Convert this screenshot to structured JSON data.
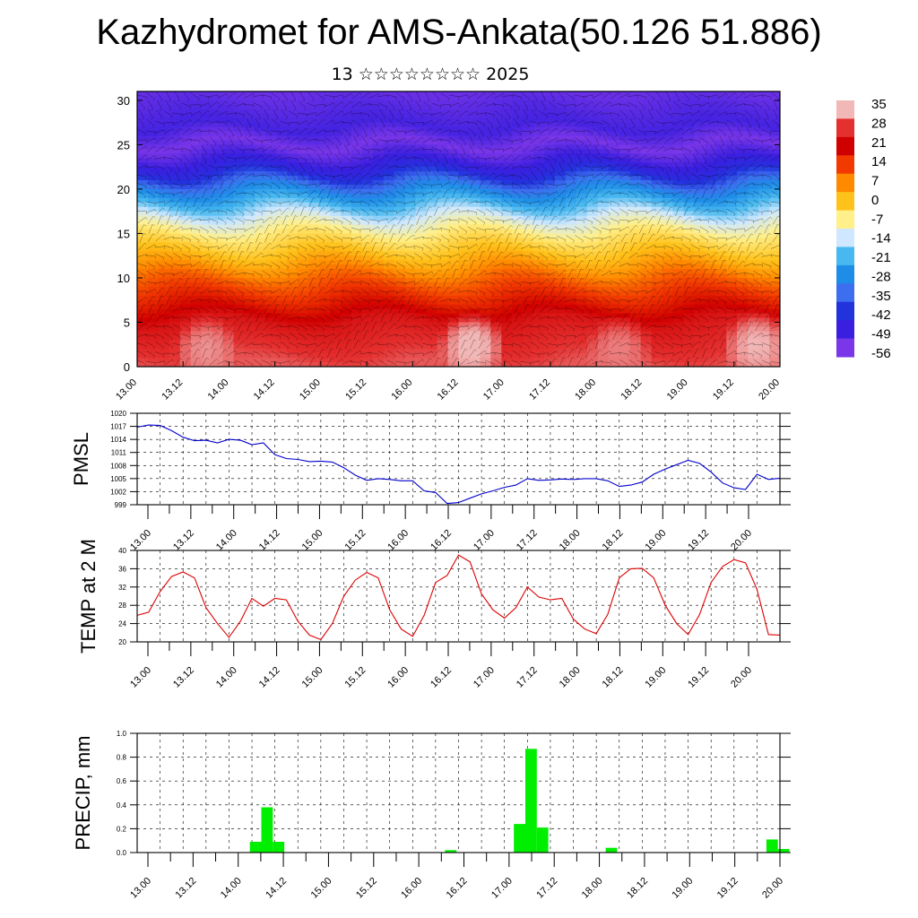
{
  "title": "Kazhydromet for AMS-Ankata(50.126 51.886)",
  "subtitle": "13 ☆☆☆☆☆☆☆☆ 2025",
  "time_labels": [
    "13.00",
    "13.12",
    "14.00",
    "14.12",
    "15.00",
    "15.12",
    "16.00",
    "16.12",
    "17.00",
    "17.12",
    "18.00",
    "18.12",
    "19.00",
    "19.12",
    "20.00"
  ],
  "chart_data": [
    {
      "type": "heatmap",
      "title": "",
      "ylabel": "",
      "ylim": [
        0,
        31
      ],
      "yticks": [
        "0",
        "5",
        "10",
        "15",
        "20",
        "25",
        "30"
      ],
      "colorbar": {
        "labels": [
          "35",
          "28",
          "21",
          "14",
          "7",
          "0",
          "-7",
          "-14",
          "-21",
          "-28",
          "-35",
          "-42",
          "-49",
          "-56"
        ],
        "colors": [
          "#f2b8b8",
          "#e53030",
          "#d10000",
          "#f23a00",
          "#ff8a00",
          "#ffc21a",
          "#fff08a",
          "#cfe8ff",
          "#48b9f0",
          "#1e8de8",
          "#3d6ef0",
          "#2233dd",
          "#3a1fe0",
          "#7a36e8"
        ]
      },
      "profile": [
        {
          "height": 0,
          "value": 30
        },
        {
          "height": 5,
          "value": 24
        },
        {
          "height": 10,
          "value": 10
        },
        {
          "height": 12.5,
          "value": 1
        },
        {
          "height": 15,
          "value": -6
        },
        {
          "height": 17,
          "value": -14
        },
        {
          "height": 20,
          "value": -30
        },
        {
          "height": 22,
          "value": -45
        },
        {
          "height": 25,
          "value": -56
        },
        {
          "height": 27,
          "value": -50
        },
        {
          "height": 31,
          "value": -54
        }
      ],
      "warm_cells": [
        {
          "time": 1.5,
          "height": 2,
          "value": 33
        },
        {
          "time": 7.3,
          "height": 2.5,
          "value": 36
        },
        {
          "time": 10.5,
          "height": 2,
          "value": 32
        },
        {
          "time": 13.5,
          "height": 2.5,
          "value": 35
        }
      ]
    },
    {
      "type": "line",
      "ylabel": "PMSL",
      "ylim": [
        999,
        1020
      ],
      "yticks": [
        "999",
        "1002",
        "1005",
        "1008",
        "1011",
        "1014",
        "1017",
        "1020"
      ],
      "color": "#0000cc",
      "x": [
        0,
        0.25,
        0.5,
        0.75,
        1,
        1.25,
        1.5,
        1.75,
        2,
        2.25,
        2.5,
        2.75,
        3,
        3.25,
        3.5,
        3.75,
        4,
        4.25,
        4.5,
        4.75,
        5,
        5.25,
        5.5,
        5.75,
        6,
        6.25,
        6.5,
        6.75,
        7,
        7.25,
        7.5,
        7.75,
        8,
        8.25,
        8.5,
        8.75,
        9,
        9.25,
        9.5,
        9.75,
        10,
        10.25,
        10.5,
        10.75,
        11,
        11.25,
        11.5,
        11.75,
        12,
        12.25,
        12.5,
        12.75,
        13,
        13.25,
        13.5,
        13.75,
        14
      ],
      "values": [
        1016.8,
        1017.3,
        1017.2,
        1016,
        1014.5,
        1013.7,
        1013.8,
        1013.2,
        1014,
        1013.8,
        1012.8,
        1013.2,
        1010.5,
        1009.6,
        1009.4,
        1008.9,
        1009,
        1008.8,
        1007.5,
        1005.8,
        1004.6,
        1005,
        1004.8,
        1004.5,
        1004.5,
        1002.2,
        1001.8,
        999.3,
        999.5,
        1000.5,
        1001.5,
        1002.2,
        1003,
        1003.5,
        1005,
        1004.6,
        1004.7,
        1004.9,
        1004.8,
        1005,
        1005,
        1004.5,
        1003.2,
        1003.5,
        1004.2,
        1006,
        1007.2,
        1008.2,
        1009.2,
        1008.5,
        1006.5,
        1004,
        1002.9,
        1002.5,
        1006,
        1004.8,
        1005.1
      ]
    },
    {
      "type": "line",
      "ylabel": "TEMP at 2 M",
      "ylim": [
        20,
        40
      ],
      "yticks": [
        "20",
        "24",
        "28",
        "32",
        "36",
        "40"
      ],
      "color": "#dd0000",
      "x": [
        0,
        0.25,
        0.5,
        0.75,
        1,
        1.25,
        1.5,
        1.75,
        2,
        2.25,
        2.5,
        2.75,
        3,
        3.25,
        3.5,
        3.75,
        4,
        4.25,
        4.5,
        4.75,
        5,
        5.25,
        5.5,
        5.75,
        6,
        6.25,
        6.5,
        6.75,
        7,
        7.25,
        7.5,
        7.75,
        8,
        8.25,
        8.5,
        8.75,
        9,
        9.25,
        9.5,
        9.75,
        10,
        10.25,
        10.5,
        10.75,
        11,
        11.25,
        11.5,
        11.75,
        12,
        12.25,
        12.5,
        12.75,
        13,
        13.25,
        13.5,
        13.75,
        14
      ],
      "values": [
        25.8,
        26.5,
        31,
        34.3,
        35.3,
        34,
        27.5,
        24,
        21,
        24.5,
        29.5,
        27.8,
        29.5,
        29.2,
        24.5,
        21.5,
        20.5,
        24,
        30,
        33.5,
        35.2,
        34,
        27,
        22.8,
        21.2,
        25.8,
        33,
        34.5,
        39,
        37.5,
        30.5,
        27,
        25.2,
        27.5,
        32,
        29.8,
        29.2,
        29.5,
        25,
        22.8,
        21.8,
        26,
        34,
        36,
        36.1,
        34,
        28,
        24,
        21.6,
        26,
        33,
        36.5,
        38,
        37.3,
        31.5,
        21.6,
        21.5
      ]
    },
    {
      "type": "bar",
      "ylabel": "PRECIP, mm",
      "ylim": [
        0,
        1
      ],
      "yticks": [
        "0.0",
        "0.2",
        "0.4",
        "0.6",
        "0.8",
        "1.0"
      ],
      "color": "#00ee00",
      "x": [
        2.58,
        2.83,
        3.08,
        6.83,
        8.33,
        8.58,
        8.83,
        10.33,
        13.83,
        14.08
      ],
      "values": [
        0.09,
        0.38,
        0.09,
        0.02,
        0.24,
        0.87,
        0.21,
        0.04,
        0.11,
        0.03
      ]
    }
  ]
}
